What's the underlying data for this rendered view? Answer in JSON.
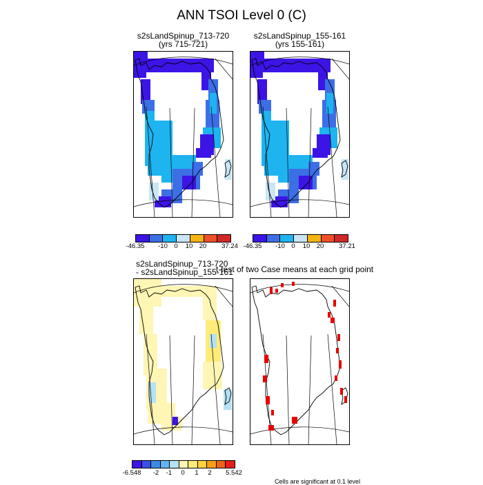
{
  "title": "ANN TSOI Level 0 (C)",
  "panels": {
    "p1": {
      "line1": "s2sLandSpinup_713-720",
      "line2": "(yrs 715-721)"
    },
    "p2": {
      "line1": "s2sLandSpinup_155-161",
      "line2": "(yrs 155-161)"
    },
    "p3": {
      "line1": "s2sLandSpinup_713-720",
      "line2": "- s2sLandSpinup_155-161"
    },
    "p4": {
      "line1": "t-test of two Case means at each grid point"
    }
  },
  "colors": {
    "abs": [
      "#3c14e6",
      "#3c6ee6",
      "#1eb4f0",
      "#c8e6f5",
      "#f5b414",
      "#f05028",
      "#d22828"
    ],
    "diff": [
      "#3c14e6",
      "#3c50e6",
      "#3c8ce6",
      "#64b4f0",
      "#b4e1f5",
      "#fff5b4",
      "#ffeb78",
      "#ffd23c",
      "#f5a014",
      "#f06414",
      "#e61e1e"
    ],
    "sig": "#e60000",
    "outline": "#000000"
  },
  "colorbars": {
    "abs1": {
      "labels": [
        "-46.35",
        "-10",
        "0",
        "10",
        "20",
        "37.24"
      ]
    },
    "abs2": {
      "labels": [
        "-46.35",
        "-10",
        "0",
        "10",
        "20",
        "37.21"
      ]
    },
    "diff": {
      "labels": [
        "-6.548",
        "-2",
        "-1",
        "0",
        "1",
        "2",
        "5.542"
      ]
    }
  },
  "footnote": "Cells are significant at 0.1 level",
  "chart_data": [
    {
      "type": "heatmap",
      "title": "s2sLandSpinup_713-720 (yrs 715-721)",
      "range": [
        -46.35,
        37.24
      ],
      "colorbar_levels": [
        -10,
        0,
        10,
        20
      ]
    },
    {
      "type": "heatmap",
      "title": "s2sLandSpinup_155-161 (yrs 155-161)",
      "range": [
        -46.35,
        37.21
      ],
      "colorbar_levels": [
        -10,
        0,
        10,
        20
      ]
    },
    {
      "type": "heatmap",
      "title": "s2sLandSpinup_713-720 - s2sLandSpinup_155-161",
      "range": [
        -6.548,
        5.542
      ],
      "colorbar_levels": [
        -2,
        -1,
        0,
        1,
        2
      ]
    },
    {
      "type": "heatmap",
      "title": "t-test of two Case means at each grid point",
      "note": "Cells are significant at 0.1 level"
    }
  ]
}
